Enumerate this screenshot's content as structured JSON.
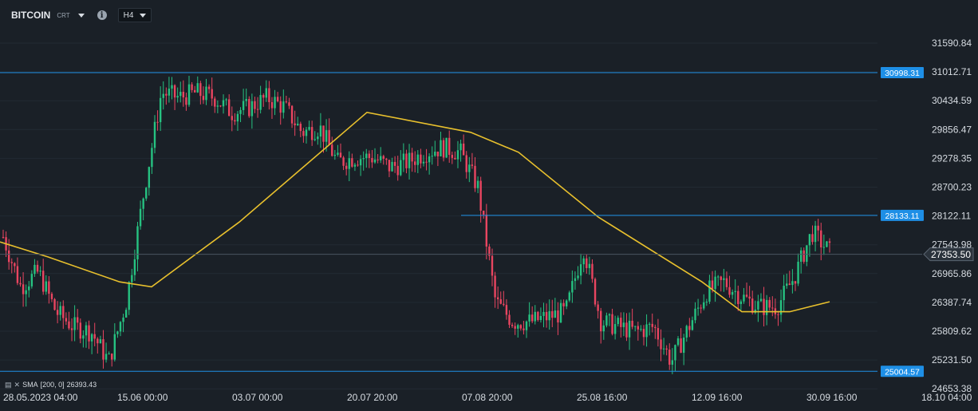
{
  "toolbar": {
    "symbol": "BITCOIN",
    "symbol_suffix": "CRT",
    "timeframe": "H4",
    "info_icon": "i"
  },
  "indicator": {
    "label": "SMA",
    "params": "[200,  0]",
    "value": "26393.43"
  },
  "price_axis": [
    "31590.84",
    "31012.71",
    "30434.59",
    "29856.47",
    "29278.35",
    "28700.23",
    "28122.11",
    "27543.98",
    "26965.86",
    "26387.74",
    "25809.62",
    "25231.50",
    "24653.38"
  ],
  "time_axis": [
    {
      "date": "28.05.2023",
      "time": "04:00"
    },
    {
      "date": "15.06",
      "time": "00:00"
    },
    {
      "date": "03.07",
      "time": "00:00"
    },
    {
      "date": "20.07",
      "time": "20:00"
    },
    {
      "date": "07.08",
      "time": "20:00"
    },
    {
      "date": "25.08",
      "time": "16:00"
    },
    {
      "date": "12.09",
      "time": "16:00"
    },
    {
      "date": "30.09",
      "time": "16:00"
    },
    {
      "date": "18.10",
      "time": "04:00"
    }
  ],
  "horizontal_lines": [
    {
      "value": "30998.31",
      "color": "#1e8fe6"
    },
    {
      "value": "28133.11",
      "color": "#1e8fe6"
    },
    {
      "value": "25004.57",
      "color": "#1e8fe6"
    }
  ],
  "current_price": "27353.50",
  "colors": {
    "background": "#1a2027",
    "bull": "#26c281",
    "bear": "#e94560",
    "sma": "#e8c02d",
    "level": "#1e8fe6",
    "text": "#d7dce2"
  },
  "chart_data": {
    "type": "candlestick",
    "price_range": [
      24600,
      31900
    ],
    "close_series": [
      {
        "x": "28.05.2023 04:00",
        "y": 27700
      },
      {
        "x": "31.05",
        "y": 26700
      },
      {
        "x": "03.06",
        "y": 27000
      },
      {
        "x": "06.06",
        "y": 26200
      },
      {
        "x": "09.06",
        "y": 25900
      },
      {
        "x": "12.06",
        "y": 25800
      },
      {
        "x": "15.06 00:00",
        "y": 25200
      },
      {
        "x": "18.06",
        "y": 26400
      },
      {
        "x": "21.06",
        "y": 28600
      },
      {
        "x": "24.06",
        "y": 30600
      },
      {
        "x": "27.06",
        "y": 30500
      },
      {
        "x": "30.06",
        "y": 30600
      },
      {
        "x": "03.07 00:00",
        "y": 30500
      },
      {
        "x": "06.07",
        "y": 30200
      },
      {
        "x": "09.07",
        "y": 30300
      },
      {
        "x": "12.07",
        "y": 30500
      },
      {
        "x": "15.07",
        "y": 30300
      },
      {
        "x": "18.07",
        "y": 29800
      },
      {
        "x": "20.07 20:00",
        "y": 29900
      },
      {
        "x": "23.07",
        "y": 29200
      },
      {
        "x": "26.07",
        "y": 29300
      },
      {
        "x": "29.07",
        "y": 29300
      },
      {
        "x": "01.08",
        "y": 29100
      },
      {
        "x": "04.08",
        "y": 29200
      },
      {
        "x": "07.08 20:00",
        "y": 29400
      },
      {
        "x": "10.08",
        "y": 29500
      },
      {
        "x": "13.08",
        "y": 29400
      },
      {
        "x": "16.08",
        "y": 28700
      },
      {
        "x": "17.08",
        "y": 26400
      },
      {
        "x": "19.08",
        "y": 26000
      },
      {
        "x": "22.08",
        "y": 26000
      },
      {
        "x": "25.08 16:00",
        "y": 26100
      },
      {
        "x": "27.08",
        "y": 26200
      },
      {
        "x": "29.08",
        "y": 27500
      },
      {
        "x": "31.08",
        "y": 26000
      },
      {
        "x": "03.09",
        "y": 25900
      },
      {
        "x": "06.09",
        "y": 25800
      },
      {
        "x": "09.09",
        "y": 25900
      },
      {
        "x": "11.09",
        "y": 25200
      },
      {
        "x": "12.09 16:00",
        "y": 25900
      },
      {
        "x": "15.09",
        "y": 26600
      },
      {
        "x": "18.09",
        "y": 26800
      },
      {
        "x": "21.09",
        "y": 26500
      },
      {
        "x": "24.09",
        "y": 26300
      },
      {
        "x": "27.09",
        "y": 26300
      },
      {
        "x": "30.09 16:00",
        "y": 26900
      },
      {
        "x": "02.10",
        "y": 27800
      },
      {
        "x": "03.10",
        "y": 27400
      }
    ],
    "sma_200": [
      {
        "x": "28.05.2023 04:00",
        "y": 27600
      },
      {
        "x": "05.06",
        "y": 27300
      },
      {
        "x": "12.06",
        "y": 26800
      },
      {
        "x": "17.06",
        "y": 26700
      },
      {
        "x": "03.07 00:00",
        "y": 28000
      },
      {
        "x": "20.07 20:00",
        "y": 30200
      },
      {
        "x": "07.08 20:00",
        "y": 29800
      },
      {
        "x": "14.08",
        "y": 29400
      },
      {
        "x": "25.08 16:00",
        "y": 28100
      },
      {
        "x": "12.09 16:00",
        "y": 26800
      },
      {
        "x": "18.09",
        "y": 26200
      },
      {
        "x": "27.09",
        "y": 26200
      },
      {
        "x": "02.10",
        "y": 26400
      }
    ]
  }
}
